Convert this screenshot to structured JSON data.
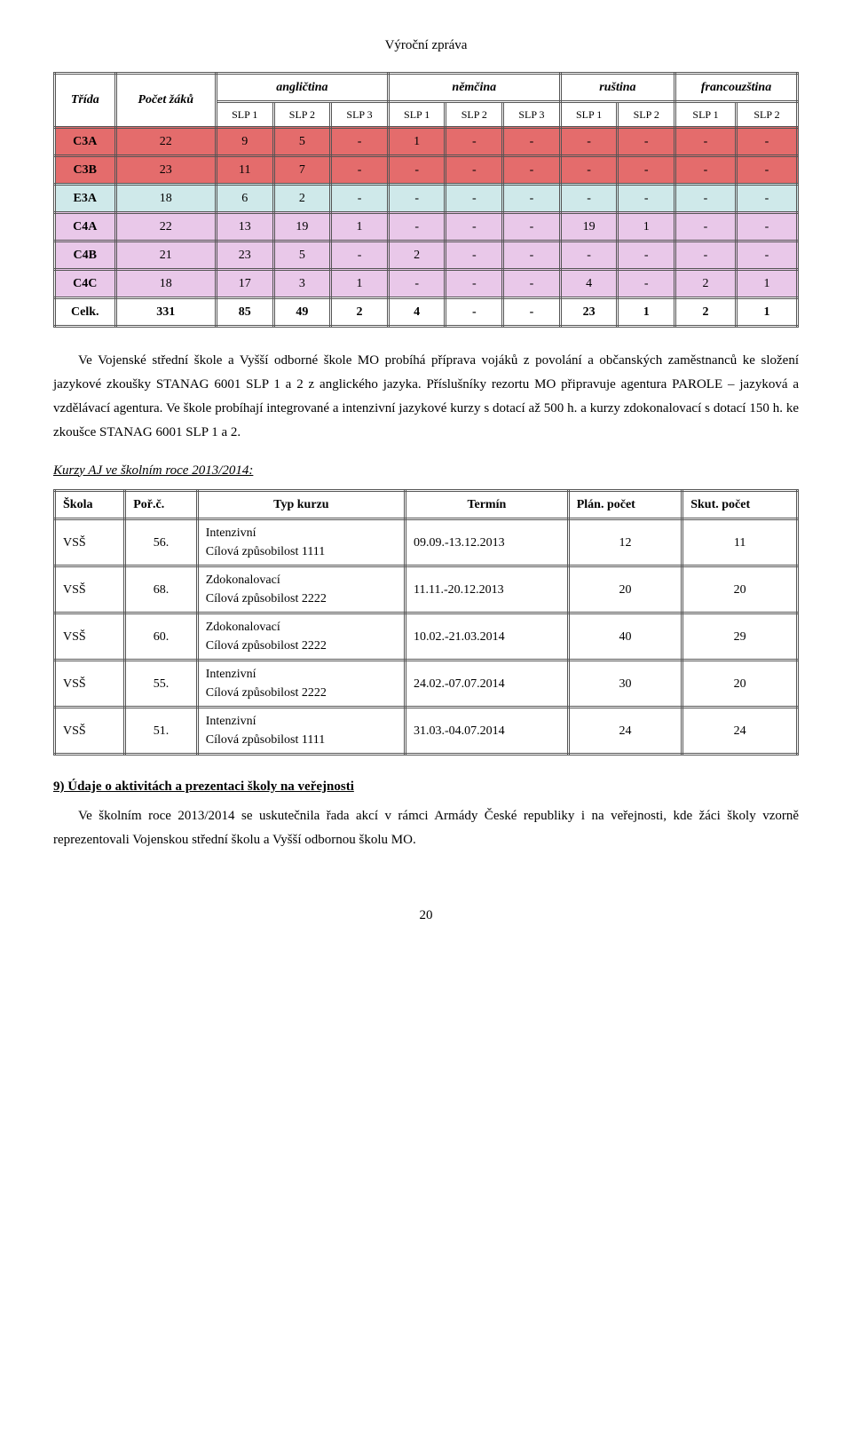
{
  "header": "Výroční zpráva",
  "table1": {
    "col_headers": [
      "Třída",
      "Počet žáků",
      "angličtina",
      "němčina",
      "ruština",
      "francouzština"
    ],
    "slp_labels": [
      "SLP 1",
      "SLP 2",
      "SLP 3",
      "SLP 1",
      "SLP 2",
      "SLP 3",
      "SLP 1",
      "SLP 2",
      "SLP 1",
      "SLP 2"
    ],
    "rows": [
      {
        "bg": "#e46c6c",
        "cells": [
          "C3A",
          "22",
          "9",
          "5",
          "-",
          "1",
          "-",
          "-",
          "-",
          "-",
          "-",
          "-"
        ]
      },
      {
        "bg": "#e46c6c",
        "cells": [
          "C3B",
          "23",
          "11",
          "7",
          "-",
          "-",
          "-",
          "-",
          "-",
          "-",
          "-",
          "-"
        ]
      },
      {
        "bg": "#cfe9ea",
        "cells": [
          "E3A",
          "18",
          "6",
          "2",
          "-",
          "-",
          "-",
          "-",
          "-",
          "-",
          "-",
          "-"
        ]
      },
      {
        "bg": "#e9c8e9",
        "cells": [
          "C4A",
          "22",
          "13",
          "19",
          "1",
          "-",
          "-",
          "-",
          "19",
          "1",
          "-",
          "-"
        ]
      },
      {
        "bg": "#e9c8e9",
        "cells": [
          "C4B",
          "21",
          "23",
          "5",
          "-",
          "2",
          "-",
          "-",
          "-",
          "-",
          "-",
          "-"
        ]
      },
      {
        "bg": "#e9c8e9",
        "cells": [
          "C4C",
          "18",
          "17",
          "3",
          "1",
          "-",
          "-",
          "-",
          "4",
          "-",
          "2",
          "1"
        ]
      },
      {
        "bg": "#ffffff",
        "cells": [
          "Celk.",
          "331",
          "85",
          "49",
          "2",
          "4",
          "-",
          "-",
          "23",
          "1",
          "2",
          "1"
        ]
      }
    ],
    "header_bg": "#ffffff",
    "col_widths": [
      "60",
      "48",
      "44",
      "44",
      "44",
      "44",
      "44",
      "44",
      "44",
      "44",
      "44",
      "44"
    ]
  },
  "para1": "Ve Vojenské střední škole a Vyšší odborné škole MO probíhá příprava vojáků z povolání a občanských zaměstnanců ke složení jazykové zkoušky STANAG 6001 SLP 1 a 2 z anglického jazyka.  Příslušníky rezortu MO  připravuje agentura PAROLE – jazyková a vzdělávací agentura. Ve škole probíhají integrované a intenzivní jazykové kurzy s dotací až 500  h.   a  kurzy  zdokonalovací  s dotací  150  h.   ke  zkoušce  STANAG  6001  SLP 1 a 2.",
  "kurzy_title": "Kurzy AJ ve školním roce 2013/2014:",
  "table2": {
    "headers": [
      "Škola",
      "Poř.č.",
      "Typ kurzu",
      "Termín",
      "Plán. počet",
      "Skut. počet"
    ],
    "rows": [
      {
        "c": [
          "VSŠ",
          "56.",
          "Intenzivní",
          "Cílová způsobilost   1111",
          "09.09.-13.12.2013",
          "12",
          "11"
        ]
      },
      {
        "c": [
          "VSŠ",
          "68.",
          "Zdokonalovací",
          "Cílová způsobilost   2222",
          "11.11.-20.12.2013",
          "20",
          "20"
        ]
      },
      {
        "c": [
          "VSŠ",
          "60.",
          "Zdokonalovací",
          "Cílová způsobilost   2222",
          "10.02.-21.03.2014",
          "40",
          "29"
        ]
      },
      {
        "c": [
          "VSŠ",
          "55.",
          "Intenzivní",
          "Cílová způsobilost   2222",
          "24.02.-07.07.2014",
          "30",
          "20"
        ]
      },
      {
        "c": [
          "VSŠ",
          "51.",
          "Intenzivní",
          "Cílová způsobilost   1111",
          "31.03.-04.07.2014",
          "24",
          "24"
        ]
      }
    ]
  },
  "section9_title": "9) Údaje o aktivitách a prezentaci školy na veřejnosti",
  "para2": "Ve školním roce 2013/2014 se uskutečnila řada akcí v rámci Armády České republiky i na veřejnosti, kde žáci školy vzorně reprezentovali Vojenskou střední školu a Vyšší odbornou školu MO.",
  "page_number": "20"
}
